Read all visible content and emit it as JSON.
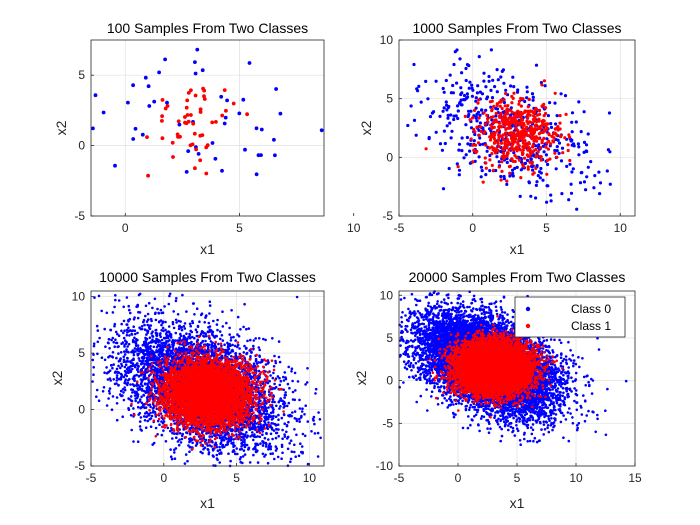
{
  "colors": {
    "class0": "#0000ff",
    "class1": "#ff0000",
    "grid": "#e0e0e0",
    "axis": "#262626"
  },
  "legend": {
    "entries": [
      "Class 0",
      "Class 1"
    ],
    "placement": "top-right",
    "panel": 3
  },
  "chart_data": [
    {
      "type": "scatter",
      "title": "100 Samples From Two Classes",
      "xlabel": "x1",
      "ylabel": "x2",
      "xlim": [
        -1.5,
        8.7
      ],
      "ylim": [
        -5,
        7.5
      ],
      "xticks": [
        0,
        5,
        10
      ],
      "yticks": [
        -5,
        0,
        5
      ],
      "grid": true,
      "n": 100,
      "series": [
        {
          "name": "Class 0",
          "center": [
            3,
            2
          ],
          "std": [
            3,
            3.2
          ],
          "corr": -0.45
        },
        {
          "name": "Class 1",
          "center": [
            3,
            2
          ],
          "std": [
            1.0,
            1.5
          ],
          "corr": 0
        }
      ]
    },
    {
      "type": "scatter",
      "title": "1000 Samples From Two Classes",
      "xlabel": "x1",
      "ylabel": "x2",
      "xlim": [
        -5,
        11
      ],
      "ylim": [
        -5,
        10
      ],
      "xticks": [
        -5,
        0,
        5,
        10
      ],
      "yticks": [
        -5,
        0,
        5,
        10
      ],
      "grid": true,
      "n": 1000,
      "series": [
        {
          "name": "Class 0",
          "center": [
            2.5,
            2
          ],
          "std": [
            2.8,
            2.8
          ],
          "corr": -0.45
        },
        {
          "name": "Class 1",
          "center": [
            3,
            2
          ],
          "std": [
            1.4,
            1.4
          ],
          "corr": 0
        }
      ]
    },
    {
      "type": "scatter",
      "title": "10000 Samples From Two Classes",
      "xlabel": "x1",
      "ylabel": "x2",
      "xlim": [
        -5,
        11
      ],
      "ylim": [
        -5,
        10.5
      ],
      "xticks": [
        -5,
        0,
        5,
        10
      ],
      "yticks": [
        -5,
        0,
        5,
        10
      ],
      "grid": true,
      "n": 10000,
      "series": [
        {
          "name": "Class 0",
          "center": [
            2.5,
            2
          ],
          "std": [
            2.8,
            2.8
          ],
          "corr": -0.45
        },
        {
          "name": "Class 1",
          "center": [
            3,
            1.5
          ],
          "std": [
            1.45,
            1.45
          ],
          "corr": 0
        }
      ]
    },
    {
      "type": "scatter",
      "title": "20000 Samples From Two Classes",
      "xlabel": "x1",
      "ylabel": "x2",
      "xlim": [
        -5,
        15
      ],
      "ylim": [
        -10,
        10.5
      ],
      "xticks": [
        -5,
        0,
        5,
        10,
        15
      ],
      "yticks": [
        -10,
        -5,
        0,
        5,
        10
      ],
      "grid": true,
      "n": 20000,
      "series": [
        {
          "name": "Class 0",
          "center": [
            2.5,
            2
          ],
          "std": [
            2.8,
            2.8
          ],
          "corr": -0.45
        },
        {
          "name": "Class 1",
          "center": [
            3,
            1.5
          ],
          "std": [
            1.45,
            1.45
          ],
          "corr": 0
        }
      ]
    }
  ]
}
